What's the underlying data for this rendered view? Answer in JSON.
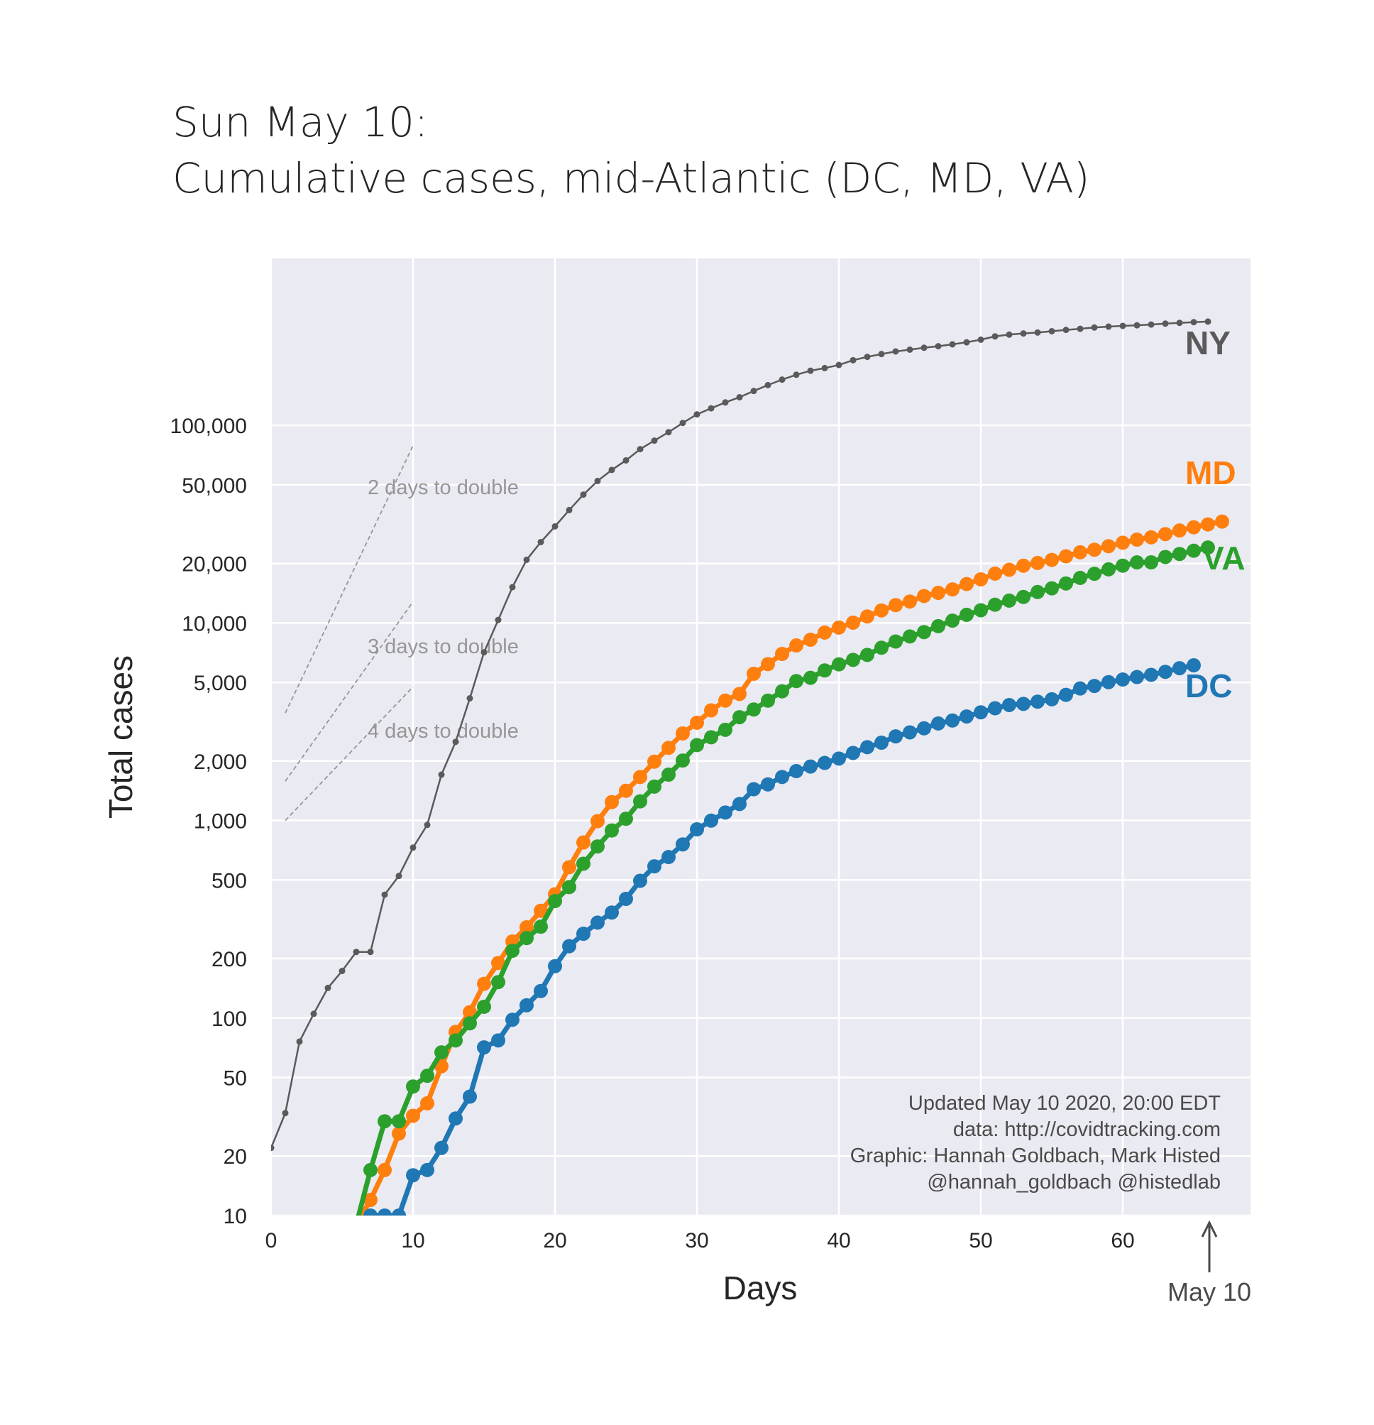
{
  "title_line1": "Sun May 10:",
  "title_line2": "Cumulative cases, mid-Atlantic (DC, MD, VA)",
  "xlabel": "Days",
  "ylabel": "Total cases",
  "date_marker": "May 10",
  "credits": [
    "Updated May 10 2020, 20:00 EDT",
    "data: http://covidtracking.com",
    "Graphic: Hannah Goldbach, Mark Histed",
    "@hannah_goldbach @histedlab"
  ],
  "colors": {
    "background": "#eaeaf2",
    "grid": "#ffffff",
    "NY": "#5a5a5a",
    "MD": "#ff7f0e",
    "VA": "#2ca02c",
    "DC": "#1f77b4",
    "doubling": "#969696"
  },
  "chart_data": {
    "type": "line",
    "yscale": "log",
    "xlim": [
      0,
      69
    ],
    "ylim": [
      10,
      700000
    ],
    "grid": true,
    "x_ticks": [
      0,
      10,
      20,
      30,
      40,
      50,
      60
    ],
    "x_tick_labels": [
      "0",
      "10",
      "20",
      "30",
      "40",
      "50",
      "60"
    ],
    "y_ticks": [
      10,
      20,
      50,
      100,
      200,
      500,
      1000,
      2000,
      5000,
      10000,
      20000,
      50000,
      100000
    ],
    "y_tick_labels": [
      "10",
      "20",
      "50",
      "100",
      "200",
      "500",
      "1,000",
      "2,000",
      "5,000",
      "10,000",
      "20,000",
      "50,000",
      "100,000"
    ],
    "doubling_lines": [
      {
        "label": "2 days to double",
        "x": [
          1,
          10
        ],
        "y": [
          3500,
          79000
        ]
      },
      {
        "label": "3 days to double",
        "x": [
          1,
          10
        ],
        "y": [
          1580,
          12800
        ]
      },
      {
        "label": "4 days to double",
        "x": [
          1,
          10
        ],
        "y": [
          1000,
          4750
        ]
      }
    ],
    "series": [
      {
        "name": "NY",
        "x_start": 0,
        "values": [
          22,
          33,
          76,
          105,
          142,
          173,
          216,
          216,
          421,
          524,
          729,
          950,
          1706,
          2500,
          4152,
          7102,
          10356,
          15168,
          20875,
          25665,
          30811,
          37258,
          44635,
          52318,
          59513,
          66497,
          75795,
          83712,
          92381,
          102863,
          113704,
          122031,
          130689,
          138836,
          149316,
          159937,
          170512,
          180458,
          189033,
          195031,
          202208,
          213779,
          222284,
          229642,
          236732,
          241712,
          247215,
          251690,
          257216,
          263460,
          271590,
          282143,
          288045,
          291996,
          295106,
          299691,
          304372,
          308314,
          312977,
          316415,
          318953,
          321192,
          323978,
          327469,
          330407,
          333122,
          335395
        ]
      },
      {
        "name": "MD",
        "x_start": 6,
        "values": [
          9,
          12,
          17,
          26,
          32,
          37,
          57,
          85,
          107,
          149,
          190,
          244,
          288,
          349,
          423,
          580,
          774,
          992,
          1239,
          1413,
          1660,
          1985,
          2331,
          2758,
          3125,
          3609,
          4045,
          4371,
          5529,
          6185,
          6968,
          7694,
          8225,
          8936,
          9472,
          10032,
          10784,
          11572,
          12308,
          12830,
          13684,
          14193,
          14775,
          15737,
          16616,
          17766,
          18581,
          19487,
          20113,
          20849,
          21742,
          22784,
          23472,
          24473,
          25462,
          26408,
          27117,
          28163,
          29374,
          30485,
          31534,
          32587
        ]
      },
      {
        "name": "VA",
        "x_start": 6,
        "values": [
          9,
          17,
          30,
          30,
          45,
          51,
          67,
          77,
          94,
          114,
          152,
          219,
          254,
          290,
          391,
          460,
          604,
          739,
          890,
          1020,
          1250,
          1484,
          1706,
          2012,
          2407,
          2637,
          2878,
          3333,
          3645,
          4042,
          4509,
          5077,
          5274,
          5747,
          6171,
          6500,
          6889,
          7491,
          8053,
          8542,
          8990,
          9630,
          10266,
          10998,
          11594,
          12366,
          12970,
          13535,
          14339,
          14961,
          15846,
          16901,
          17731,
          18671,
          19492,
          20256,
          20257,
          21570,
          22342,
          23196,
          24081
        ]
      },
      {
        "name": "DC",
        "x_start": 7,
        "values": [
          10,
          10,
          10,
          16,
          17,
          22,
          31,
          40,
          71,
          77,
          98,
          116,
          137,
          183,
          231,
          267,
          304,
          342,
          401,
          495,
          586,
          653,
          757,
          902,
          998,
          1097,
          1211,
          1440,
          1523,
          1660,
          1778,
          1875,
          1955,
          2058,
          2197,
          2350,
          2476,
          2666,
          2793,
          2927,
          3098,
          3206,
          3361,
          3528,
          3699,
          3841,
          3892,
          3994,
          4106,
          4323,
          4658,
          4797,
          5016,
          5170,
          5322,
          5461,
          5654,
          5899,
          6102
        ]
      }
    ]
  }
}
